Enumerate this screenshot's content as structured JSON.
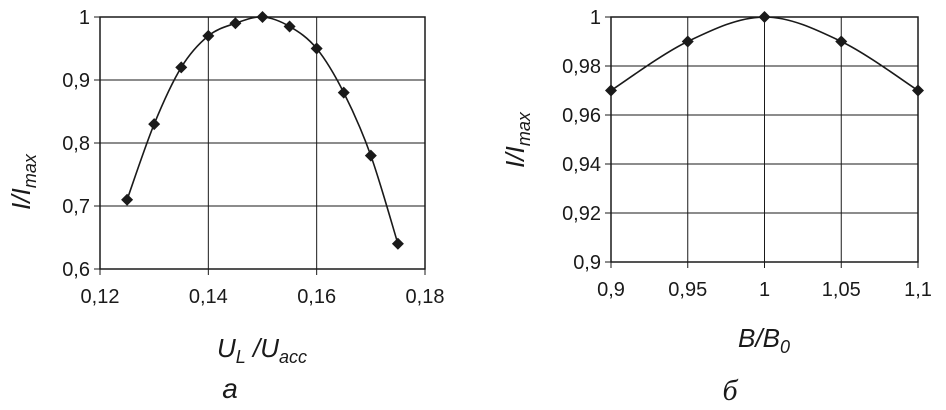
{
  "chart_data": [
    {
      "type": "line",
      "panel_label": "a",
      "title": "",
      "xlabel": {
        "main": "U",
        "sub1": "L",
        "sep": " /U",
        "sub2": "acc"
      },
      "ylabel": {
        "main": "I/I",
        "sub": "max"
      },
      "xlim": [
        0.12,
        0.18
      ],
      "ylim": [
        0.6,
        1.0
      ],
      "xticks": [
        "0,12",
        "0,14",
        "0,16",
        "0,18"
      ],
      "yticks": [
        "0,6",
        "0,7",
        "0,8",
        "0,9",
        "1"
      ],
      "grid": true,
      "series": [
        {
          "x": [
            0.125,
            0.13,
            0.135,
            0.14,
            0.145,
            0.15,
            0.155,
            0.16,
            0.165,
            0.17,
            0.175
          ],
          "y": [
            0.71,
            0.83,
            0.92,
            0.97,
            0.99,
            1.0,
            0.985,
            0.95,
            0.88,
            0.78,
            0.64
          ]
        }
      ]
    },
    {
      "type": "line",
      "panel_label": "б",
      "title": "",
      "xlabel": {
        "main": "B/B",
        "sub": "0"
      },
      "ylabel": {
        "main": "I/I",
        "sub": "max"
      },
      "xlim": [
        0.9,
        1.1
      ],
      "ylim": [
        0.9,
        1.0
      ],
      "xticks": [
        "0,9",
        "0,95",
        "1",
        "1,05",
        "1,1"
      ],
      "yticks": [
        "0,9",
        "0,92",
        "0,94",
        "0,96",
        "0,98",
        "1"
      ],
      "grid": true,
      "series": [
        {
          "x": [
            0.9,
            0.95,
            1.0,
            1.05,
            1.1
          ],
          "y": [
            0.97,
            0.99,
            1.0,
            0.99,
            0.97
          ]
        }
      ]
    }
  ]
}
